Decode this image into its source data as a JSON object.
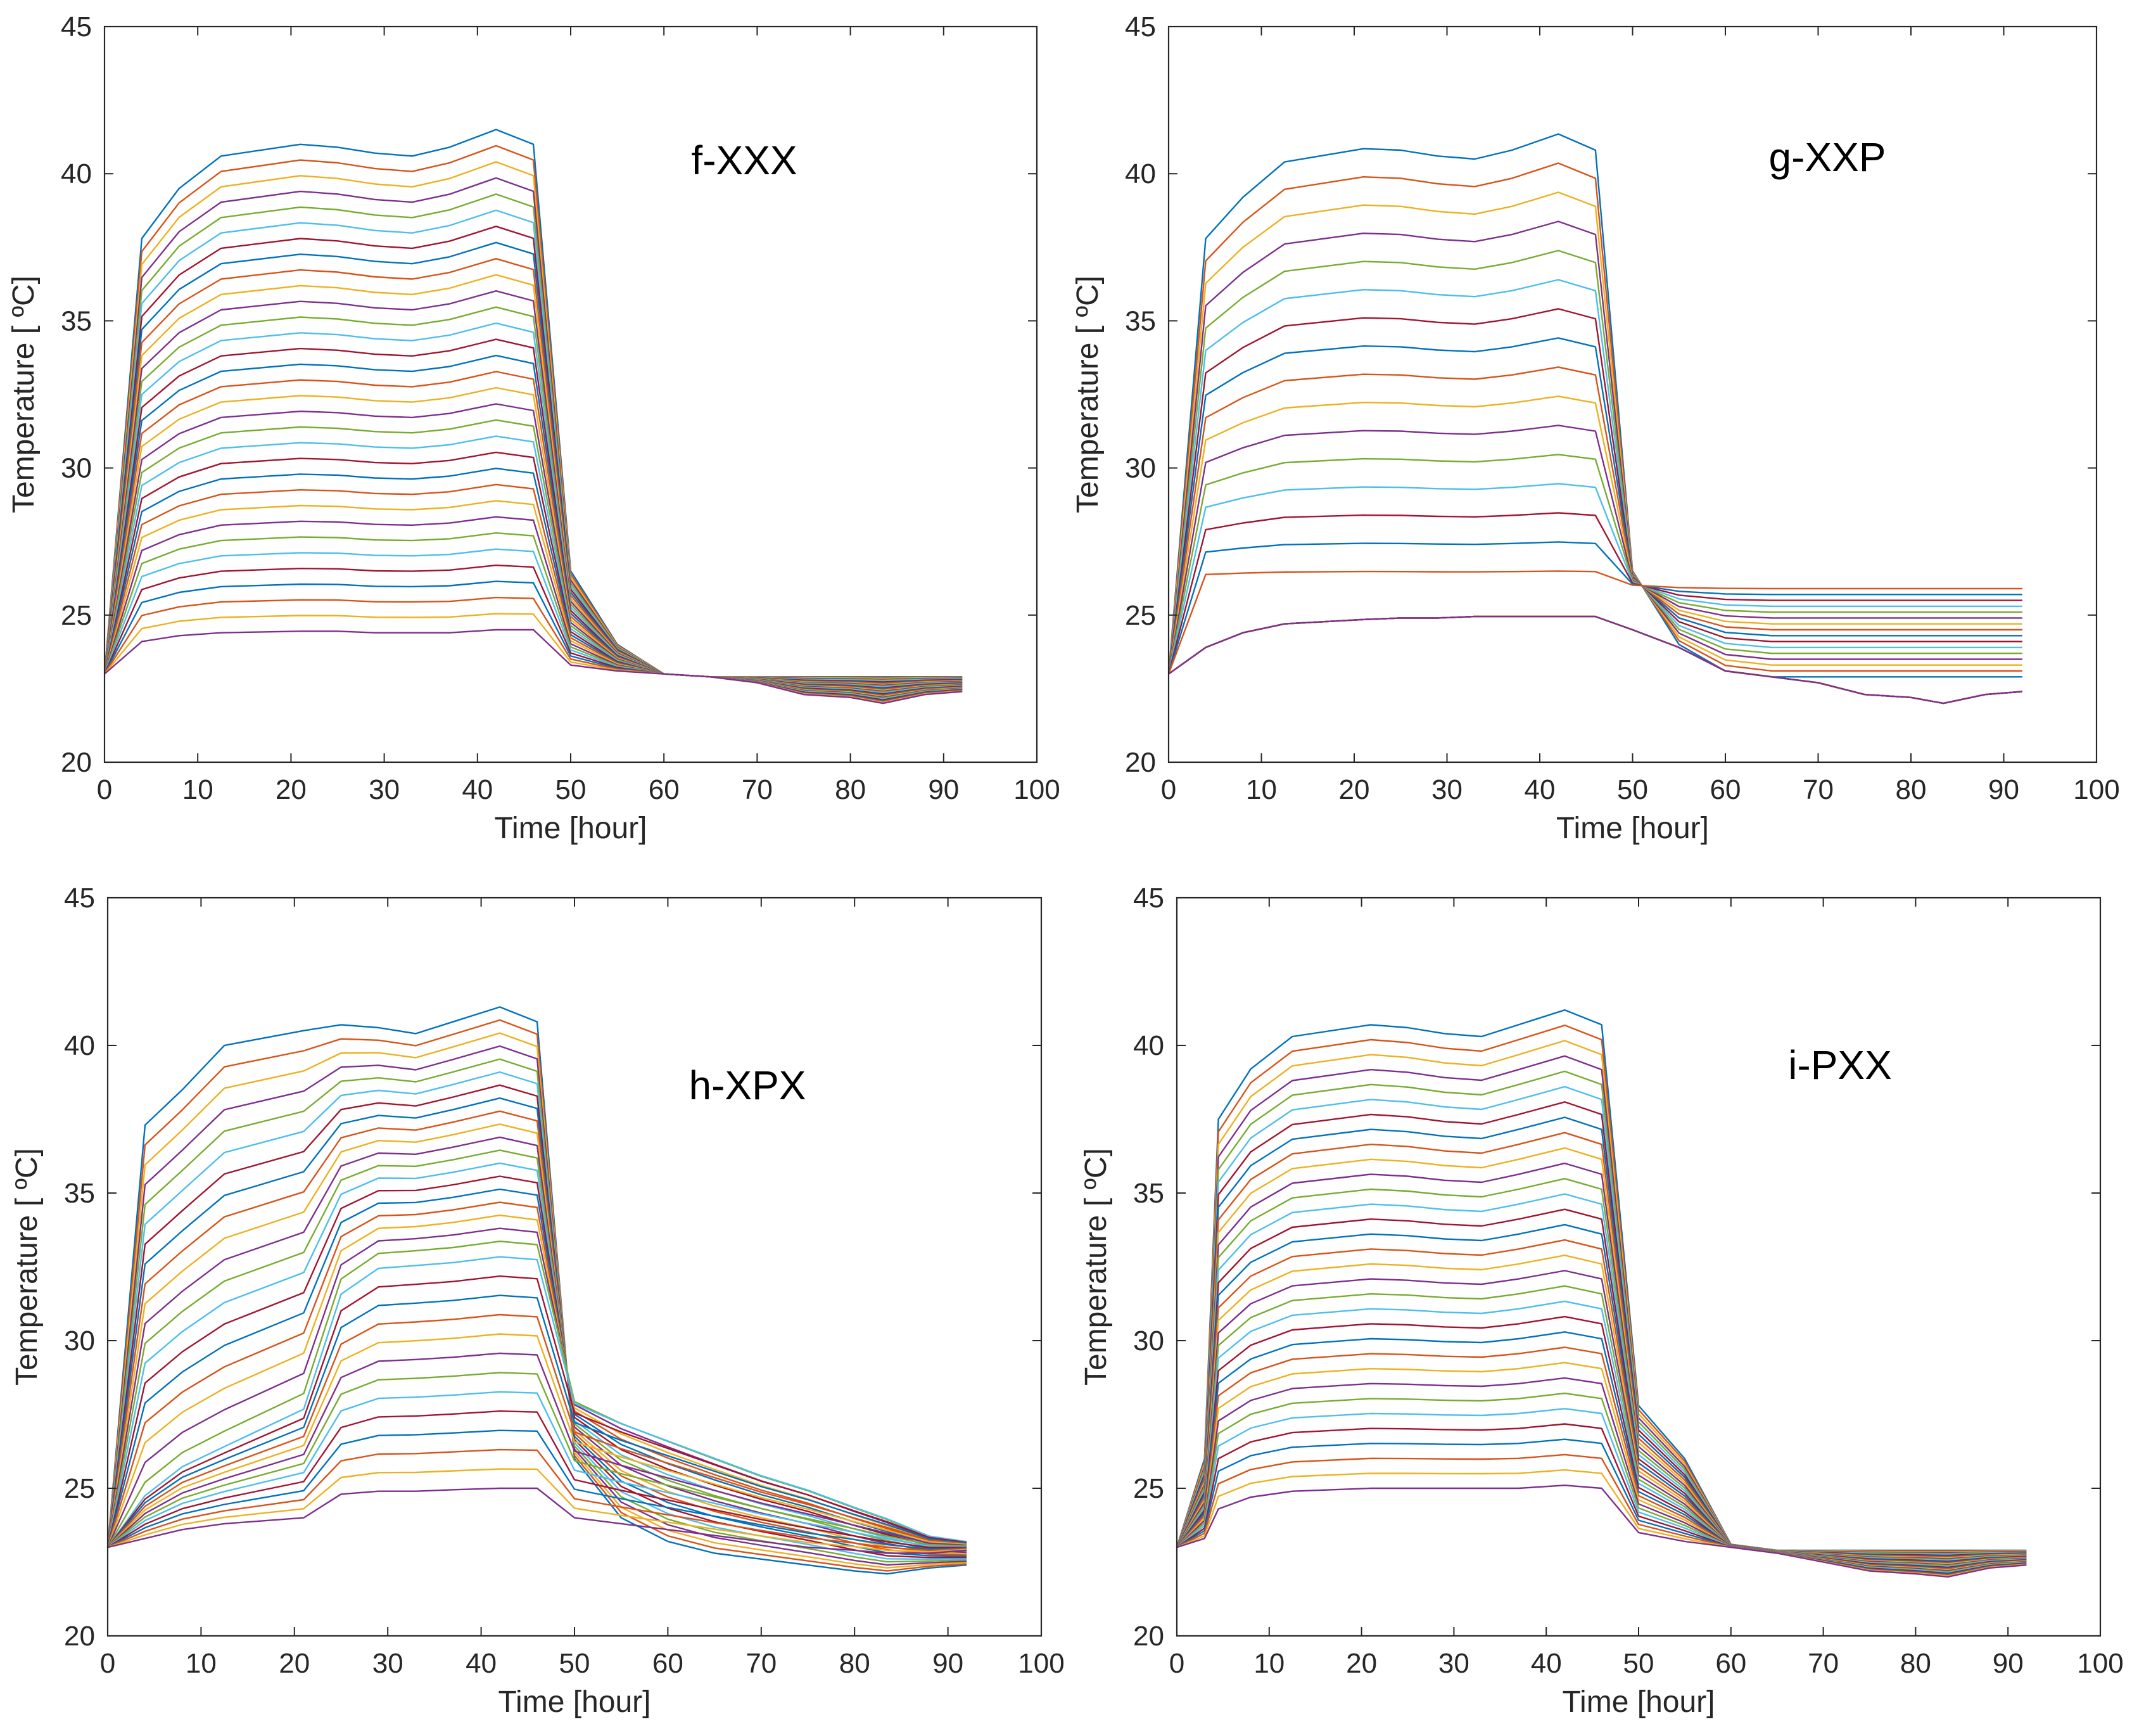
{
  "figure": {
    "panels_order": [
      "f-XXX",
      "g-XXP",
      "h-XPX",
      "i-PXX"
    ]
  },
  "colors": {
    "series_cycle": [
      "#0072BD",
      "#D95319",
      "#EDB120",
      "#7E2F8E",
      "#77AC30",
      "#4DBEEE",
      "#A2142F"
    ],
    "axis": "#262626",
    "background": "#ffffff"
  },
  "chart_data": [
    {
      "type": "line",
      "title": "f-XXX",
      "xlabel": "Time [hour]",
      "ylabel": "Temperature [ ºC]",
      "xlim": [
        0,
        100
      ],
      "ylim": [
        20,
        45
      ],
      "xticks": [
        0,
        10,
        20,
        30,
        40,
        50,
        60,
        70,
        80,
        90,
        100
      ],
      "yticks": [
        20,
        25,
        30,
        35,
        40,
        45
      ],
      "n_series": 32,
      "x": [
        0,
        4,
        8,
        12.5,
        21,
        25,
        29,
        33,
        37,
        42,
        46,
        50,
        55,
        60,
        65,
        70,
        75,
        80,
        83.5,
        88,
        92
      ],
      "series_top": [
        23,
        37.8,
        39.5,
        40.6,
        41.0,
        40.9,
        40.7,
        40.6,
        40.9,
        41.5,
        41.0,
        26.5,
        24.0,
        23.0,
        22.9,
        22.9,
        22.9,
        22.9,
        22.9,
        22.9,
        22.9
      ],
      "series_bottom": [
        23,
        24.1,
        24.3,
        24.4,
        24.45,
        24.45,
        24.4,
        24.4,
        24.4,
        24.5,
        24.5,
        23.3,
        23.1,
        23.0,
        22.9,
        22.7,
        22.3,
        22.2,
        22.0,
        22.3,
        22.4
      ],
      "series_first": null,
      "series_break": null,
      "series_break_low": null,
      "lowgroup_fraction": null
    },
    {
      "type": "line",
      "title": "g-XXP",
      "xlabel": "Time [hour]",
      "ylabel": "Temperature [ ºC]",
      "xlim": [
        0,
        100
      ],
      "ylim": [
        20,
        45
      ],
      "xticks": [
        0,
        10,
        20,
        30,
        40,
        50,
        60,
        70,
        80,
        90,
        100
      ],
      "yticks": [
        20,
        25,
        30,
        35,
        40,
        45
      ],
      "n_series": 32,
      "x": [
        0,
        4,
        8,
        12.5,
        21,
        25,
        29,
        33,
        37,
        42,
        46,
        50,
        55,
        60,
        65,
        70,
        75,
        80,
        83.5,
        88,
        92
      ],
      "series_top": [
        23,
        37.8,
        39.2,
        40.4,
        40.85,
        40.8,
        40.6,
        40.5,
        40.8,
        41.35,
        40.8,
        26.5,
        24.0,
        23.1,
        22.9,
        22.9,
        22.9,
        22.9,
        22.9,
        22.9,
        22.9
      ],
      "series_bottom": [
        23,
        23.9,
        24.4,
        24.7,
        24.85,
        24.9,
        24.9,
        24.95,
        24.95,
        24.95,
        24.95,
        24.5,
        23.9,
        23.1,
        22.9,
        22.7,
        22.3,
        22.2,
        22.0,
        22.3,
        22.4
      ],
      "series_first": null,
      "series_break": [
        23,
        26.0,
        26.0,
        26.0,
        26.0,
        26.0,
        26.0,
        26.0,
        26.0,
        26.0,
        26.0,
        26.0,
        26.0,
        26.0,
        26.0,
        26.0,
        26.0,
        26.0,
        26.0,
        26.0,
        26.0
      ],
      "series_break_low": [
        23,
        23.9,
        24.4,
        24.7,
        24.85,
        24.9,
        24.9,
        24.95,
        24.95,
        24.95,
        24.95,
        24.5,
        23.9,
        23.1,
        22.9,
        22.7,
        22.3,
        22.2,
        22.0,
        22.3,
        22.4
      ],
      "lowgroup_fraction": 0.5
    },
    {
      "type": "line",
      "title": "h-XPX",
      "xlabel": "Time [hour]",
      "ylabel": "Temperature [ ºC]",
      "xlim": [
        0,
        100
      ],
      "ylim": [
        20,
        45
      ],
      "xticks": [
        0,
        10,
        20,
        30,
        40,
        50,
        60,
        70,
        80,
        90,
        100
      ],
      "yticks": [
        20,
        25,
        30,
        35,
        40,
        45
      ],
      "n_series": 32,
      "x": [
        0,
        4,
        8,
        12.5,
        21,
        25,
        29,
        33,
        37,
        42,
        46,
        50,
        55,
        60,
        65,
        70,
        75,
        80,
        83.5,
        88,
        92
      ],
      "series_top": [
        23,
        37.3,
        38.5,
        40.0,
        40.5,
        40.7,
        40.6,
        40.4,
        40.8,
        41.3,
        40.8,
        26.0,
        24.0,
        23.2,
        22.8,
        22.6,
        22.4,
        22.2,
        22.1,
        22.3,
        22.4
      ],
      "series_bottom": [
        23,
        23.3,
        23.6,
        23.8,
        24.0,
        24.8,
        24.9,
        24.9,
        24.95,
        25.0,
        25.0,
        24.0,
        23.8,
        23.6,
        23.4,
        23.2,
        23.0,
        22.9,
        22.8,
        22.8,
        22.9
      ],
      "series_first": null,
      "series_break": [
        23,
        24.8,
        25.8,
        26.5,
        27.8,
        31.8,
        32.7,
        32.8,
        32.9,
        33.1,
        33.0,
        28.0,
        27.3,
        26.7,
        26.1,
        25.5,
        25.0,
        24.4,
        24.0,
        23.4,
        23.2
      ],
      "series_break_low": [
        23,
        24.8,
        25.8,
        26.5,
        27.8,
        31.8,
        32.7,
        32.8,
        32.9,
        33.1,
        33.0,
        28.0,
        27.3,
        26.7,
        26.1,
        25.5,
        25.0,
        24.4,
        24.0,
        23.4,
        23.2
      ],
      "lowgroup_fraction": 0.6
    },
    {
      "type": "line",
      "title": "i-PXX",
      "xlabel": "Time [hour]",
      "ylabel": "Temperature [ ºC]",
      "xlim": [
        0,
        100
      ],
      "ylim": [
        20,
        45
      ],
      "xticks": [
        0,
        10,
        20,
        30,
        40,
        50,
        60,
        70,
        80,
        90,
        100
      ],
      "yticks": [
        20,
        25,
        30,
        35,
        40,
        45
      ],
      "n_series": 32,
      "x": [
        0,
        3,
        4.5,
        8,
        12.5,
        21,
        25,
        29,
        33,
        37,
        42,
        46,
        50,
        55,
        60,
        65,
        70,
        75,
        80,
        83.5,
        88,
        92
      ],
      "series_top": [
        23,
        26.0,
        37.5,
        39.2,
        40.3,
        40.7,
        40.6,
        40.4,
        40.3,
        40.7,
        41.2,
        40.7,
        27.8,
        26.0,
        23.1,
        22.9,
        22.9,
        22.9,
        22.9,
        22.9,
        22.9,
        22.9
      ],
      "series_bottom": [
        23,
        23.3,
        24.3,
        24.7,
        24.9,
        25.0,
        25.0,
        25.0,
        25.0,
        25.0,
        25.1,
        25.0,
        23.5,
        23.2,
        23.0,
        22.8,
        22.5,
        22.2,
        22.1,
        22.0,
        22.3,
        22.4
      ],
      "series_first": null,
      "series_break": null,
      "series_break_low": null,
      "lowgroup_fraction": null
    }
  ]
}
